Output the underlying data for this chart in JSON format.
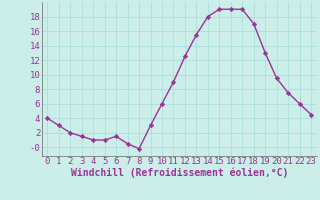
{
  "hours": [
    0,
    1,
    2,
    3,
    4,
    5,
    6,
    7,
    8,
    9,
    10,
    11,
    12,
    13,
    14,
    15,
    16,
    17,
    18,
    19,
    20,
    21,
    22,
    23
  ],
  "values": [
    4,
    3,
    2,
    1.5,
    1,
    1,
    1.5,
    0.5,
    -0.2,
    3,
    6,
    9,
    12.5,
    15.5,
    18,
    19,
    19,
    19,
    17,
    13,
    9.5,
    7.5,
    6,
    4.5
  ],
  "line_color": "#993399",
  "marker": "D",
  "marker_size": 2.2,
  "bg_color": "#cceee8",
  "grid_color": "#aadddd",
  "xlabel": "Windchill (Refroidissement éolien,°C)",
  "xlim": [
    -0.5,
    23.5
  ],
  "ylim": [
    -1.2,
    20
  ],
  "yticks": [
    0,
    2,
    4,
    6,
    8,
    10,
    12,
    14,
    16,
    18
  ],
  "ytick_labels": [
    "-0",
    "2",
    "4",
    "6",
    "8",
    "10",
    "12",
    "14",
    "16",
    "18"
  ],
  "xticks": [
    0,
    1,
    2,
    3,
    4,
    5,
    6,
    7,
    8,
    9,
    10,
    11,
    12,
    13,
    14,
    15,
    16,
    17,
    18,
    19,
    20,
    21,
    22,
    23
  ],
  "font_color": "#993399",
  "tick_font_size": 6.5,
  "label_font_size": 7,
  "linewidth": 1.0
}
